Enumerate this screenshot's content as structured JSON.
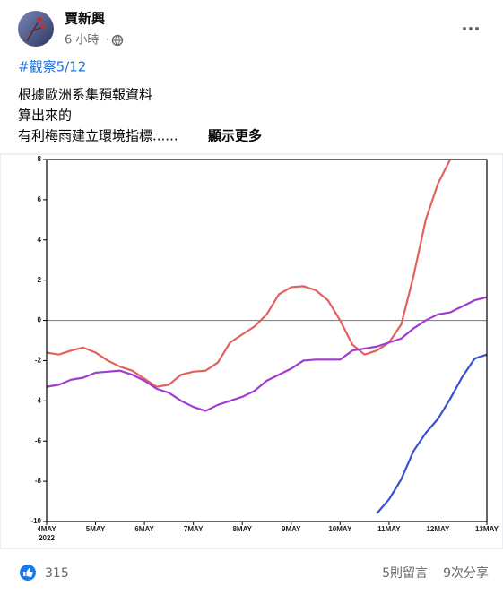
{
  "post": {
    "author": "賈新興",
    "time": "6 小時",
    "hashtag": "#觀察5/12",
    "lines": [
      "根據歐洲系集預報資料",
      "算出來的",
      "有利梅雨建立環境指標......"
    ],
    "more": "顯示更多"
  },
  "chart_data": {
    "type": "line",
    "x": [
      4,
      4.25,
      4.5,
      4.75,
      5,
      5.25,
      5.5,
      5.75,
      6,
      6.25,
      6.5,
      6.75,
      7,
      7.25,
      7.5,
      7.75,
      8,
      8.25,
      8.5,
      8.75,
      9,
      9.25,
      9.5,
      9.75,
      10,
      10.25,
      10.5,
      10.75,
      11,
      11.25,
      11.5,
      11.75,
      12,
      12.25,
      12.5,
      12.75,
      13
    ],
    "xlim": [
      4,
      13
    ],
    "xticks": [
      {
        "value": 4,
        "label": "4MAY"
      },
      {
        "value": 5,
        "label": "5MAY"
      },
      {
        "value": 6,
        "label": "6MAY"
      },
      {
        "value": 7,
        "label": "7MAY"
      },
      {
        "value": 8,
        "label": "8MAY"
      },
      {
        "value": 9,
        "label": "9MAY"
      },
      {
        "value": 10,
        "label": "10MAY"
      },
      {
        "value": 11,
        "label": "11MAY"
      },
      {
        "value": 12,
        "label": "12MAY"
      },
      {
        "value": 13,
        "label": "13MAY"
      }
    ],
    "x_year": "2022",
    "ylim": [
      -10,
      8
    ],
    "yticks": [
      -10,
      -8,
      -6,
      -4,
      -2,
      0,
      2,
      4,
      6,
      8
    ],
    "reference_line": 0,
    "series": [
      {
        "color": "#e0625f",
        "values": [
          -1.6,
          -1.7,
          -1.5,
          -1.35,
          -1.6,
          -2.0,
          -2.3,
          -2.5,
          -2.9,
          -3.3,
          -3.2,
          -2.7,
          -2.55,
          -2.5,
          -2.1,
          -1.1,
          -0.7,
          -0.3,
          0.3,
          1.3,
          1.65,
          1.7,
          1.5,
          1.0,
          0,
          -1.2,
          -1.7,
          -1.5,
          -1.1,
          -0.2,
          2.2,
          5.0,
          6.8,
          8.0,
          null,
          null,
          null
        ]
      },
      {
        "color": "#a23ccf",
        "values": [
          -3.3,
          -3.2,
          -2.95,
          -2.85,
          -2.6,
          -2.55,
          -2.5,
          -2.7,
          -3.0,
          -3.4,
          -3.6,
          -4.0,
          -4.3,
          -4.5,
          -4.2,
          -4.0,
          -3.8,
          -3.5,
          -3.0,
          -2.7,
          -2.4,
          -2.0,
          -1.95,
          -1.95,
          -1.95,
          -1.5,
          -1.4,
          -1.3,
          -1.1,
          -0.9,
          -0.4,
          0,
          0.3,
          0.4,
          0.7,
          1.0,
          1.15
        ]
      },
      {
        "color": "#3a50d0",
        "values": [
          null,
          null,
          null,
          null,
          null,
          null,
          null,
          null,
          null,
          null,
          null,
          null,
          null,
          null,
          null,
          null,
          null,
          null,
          null,
          null,
          null,
          null,
          null,
          null,
          null,
          null,
          null,
          -9.6,
          -8.9,
          -7.9,
          -6.5,
          -5.6,
          -4.9,
          -3.9,
          -2.8,
          -1.9,
          -1.7
        ]
      }
    ]
  },
  "footer": {
    "reactions": "315",
    "comments": "5則留言",
    "shares": "9次分享"
  }
}
